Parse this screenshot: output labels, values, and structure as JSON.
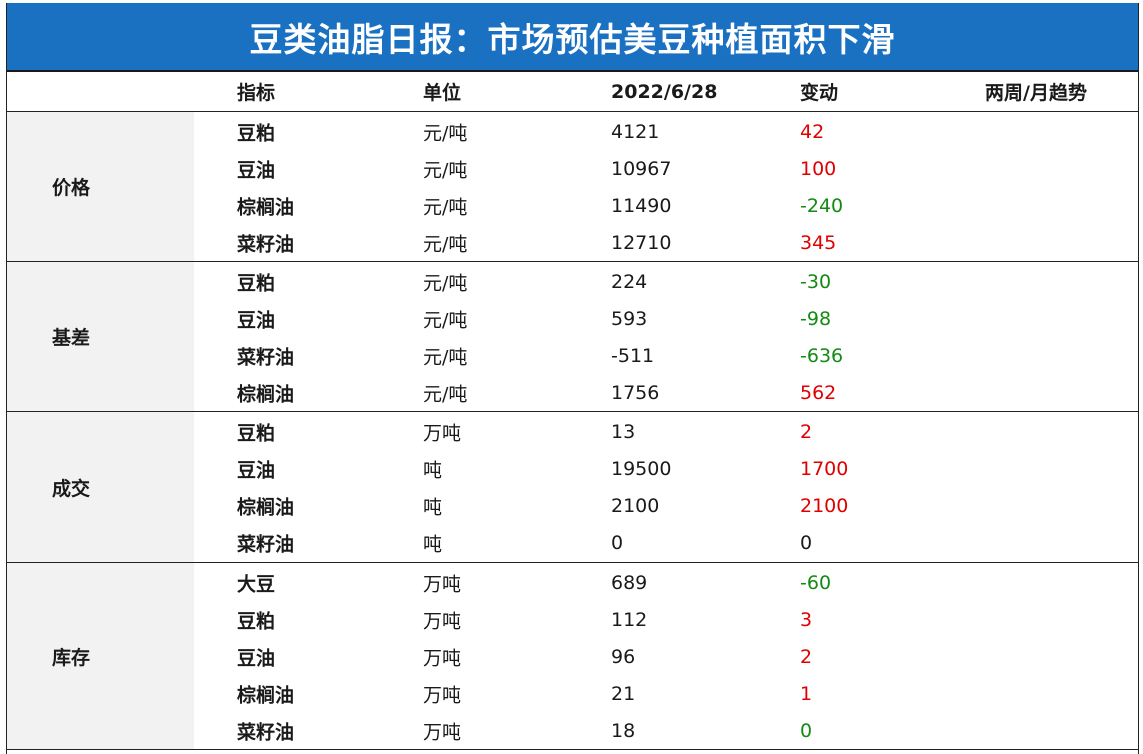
{
  "title": "豆类油脂日报：市场预估美豆种植面积下滑",
  "header": {
    "indicator": "指标",
    "unit": "单位",
    "date": "2022/6/28",
    "change": "变动",
    "trend": "两周/月趋势"
  },
  "sections": [
    {
      "category": "价格",
      "rows": [
        {
          "indicator": "豆粕",
          "unit": "元/吨",
          "value": "4121",
          "change": "42",
          "dir": "up"
        },
        {
          "indicator": "豆油",
          "unit": "元/吨",
          "value": "10967",
          "change": "100",
          "dir": "up"
        },
        {
          "indicator": "棕榈油",
          "unit": "元/吨",
          "value": "11490",
          "change": "-240",
          "dir": "down"
        },
        {
          "indicator": "菜籽油",
          "unit": "元/吨",
          "value": "12710",
          "change": "345",
          "dir": "up"
        }
      ]
    },
    {
      "category": "基差",
      "rows": [
        {
          "indicator": "豆粕",
          "unit": "元/吨",
          "value": "224",
          "change": "-30",
          "dir": "down"
        },
        {
          "indicator": "豆油",
          "unit": "元/吨",
          "value": "593",
          "change": "-98",
          "dir": "down"
        },
        {
          "indicator": "菜籽油",
          "unit": "元/吨",
          "value": "-511",
          "change": "-636",
          "dir": "down"
        },
        {
          "indicator": "棕榈油",
          "unit": "元/吨",
          "value": "1756",
          "change": "562",
          "dir": "up"
        }
      ]
    },
    {
      "category": "成交",
      "rows": [
        {
          "indicator": "豆粕",
          "unit": "万吨",
          "value": "13",
          "change": "2",
          "dir": "up"
        },
        {
          "indicator": "豆油",
          "unit": "吨",
          "value": "19500",
          "change": "1700",
          "dir": "up"
        },
        {
          "indicator": "棕榈油",
          "unit": "吨",
          "value": "2100",
          "change": "2100",
          "dir": "up"
        },
        {
          "indicator": "菜籽油",
          "unit": "吨",
          "value": "0",
          "change": "0",
          "dir": "flat"
        }
      ]
    },
    {
      "category": "库存",
      "rows": [
        {
          "indicator": "大豆",
          "unit": "万吨",
          "value": "689",
          "change": "-60",
          "dir": "down"
        },
        {
          "indicator": "豆粕",
          "unit": "万吨",
          "value": "112",
          "change": "3",
          "dir": "up"
        },
        {
          "indicator": "豆油",
          "unit": "万吨",
          "value": "96",
          "change": "2",
          "dir": "up"
        },
        {
          "indicator": "棕榈油",
          "unit": "万吨",
          "value": "21",
          "change": "1",
          "dir": "up"
        },
        {
          "indicator": "菜籽油",
          "unit": "万吨",
          "value": "18",
          "change": "0",
          "dir": "down"
        }
      ]
    }
  ],
  "colors": {
    "title_bg": "#1a71c2",
    "up": "#e00000",
    "down": "#138a13",
    "category_bg": "#f2f2f2"
  }
}
